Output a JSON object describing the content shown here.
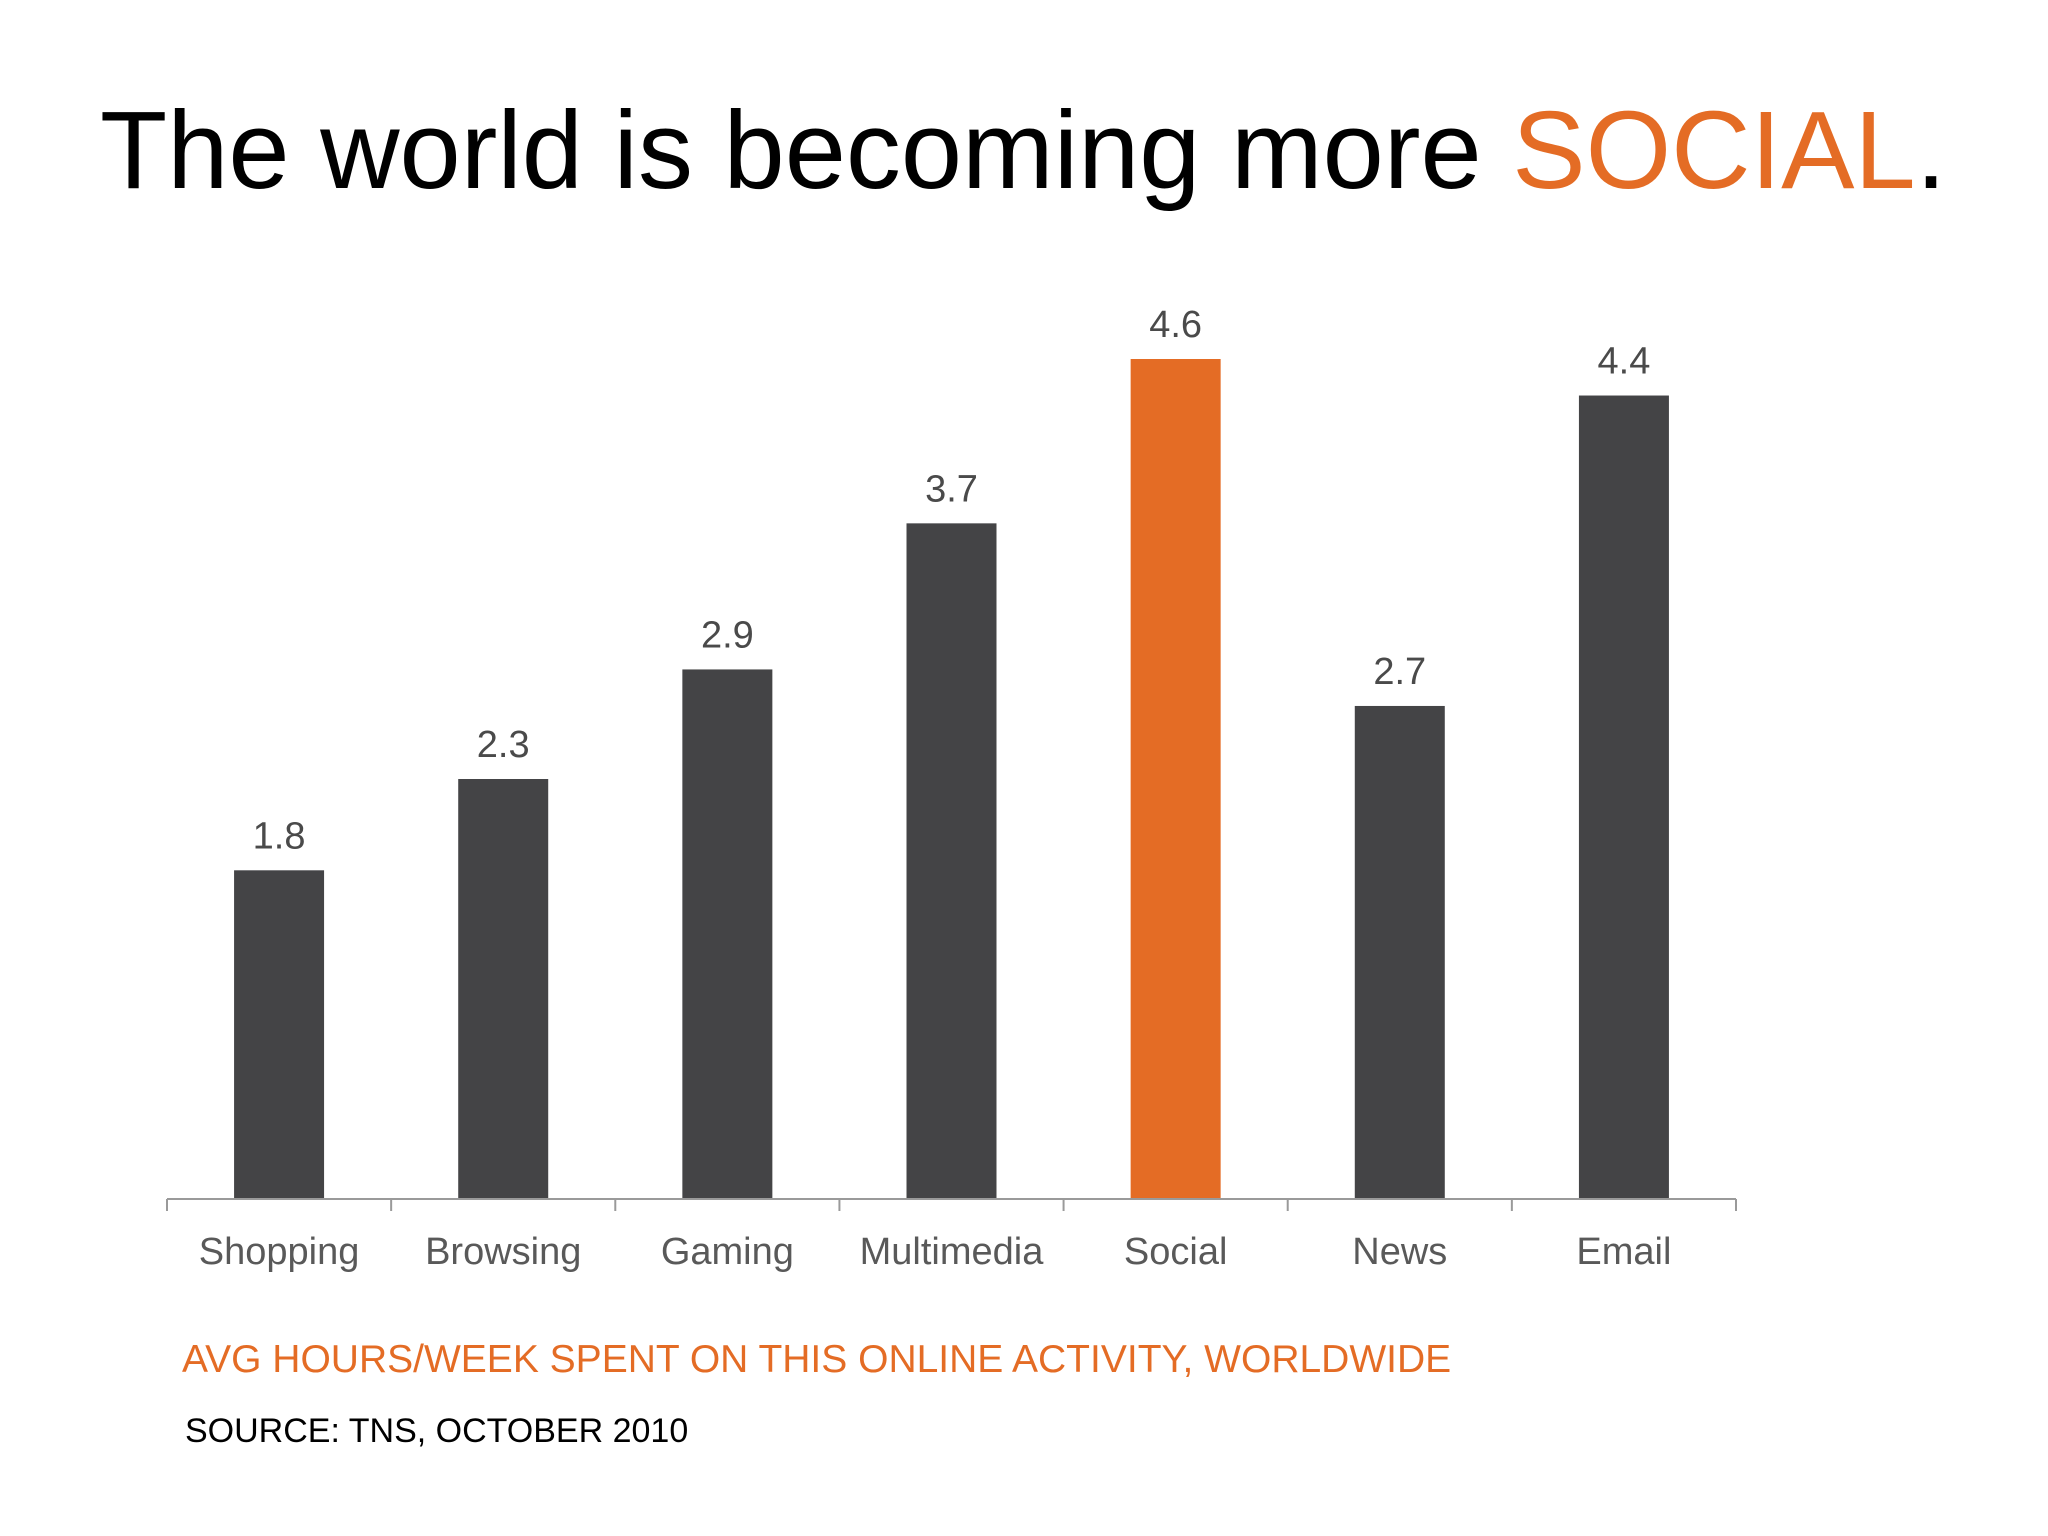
{
  "slide": {
    "title_prefix": "The world is becoming more ",
    "title_highlight": "SOCIAL",
    "title_suffix": ".",
    "caption": "AVG HOURS/WEEK SPENT ON THIS ONLINE ACTIVITY, WORLDWIDE",
    "source": "SOURCE: TNS, OCTOBER 2010"
  },
  "colors": {
    "bar": "#444446",
    "highlight": "#e46c25",
    "axis": "#9a9a9a",
    "data_label": "#4a4a4a",
    "category_label": "#595959"
  },
  "chart_data": {
    "type": "bar",
    "categories": [
      "Shopping",
      "Browsing",
      "Gaming",
      "Multimedia",
      "Social",
      "News",
      "Email"
    ],
    "values": [
      1.8,
      2.3,
      2.9,
      3.7,
      4.6,
      2.7,
      4.4
    ],
    "data_labels": [
      "1.8",
      "2.3",
      "2.9",
      "3.7",
      "4.6",
      "2.7",
      "4.4"
    ],
    "highlight_category": "Social",
    "ylim": [
      0,
      4.6
    ],
    "grid": false,
    "legend": "none"
  }
}
